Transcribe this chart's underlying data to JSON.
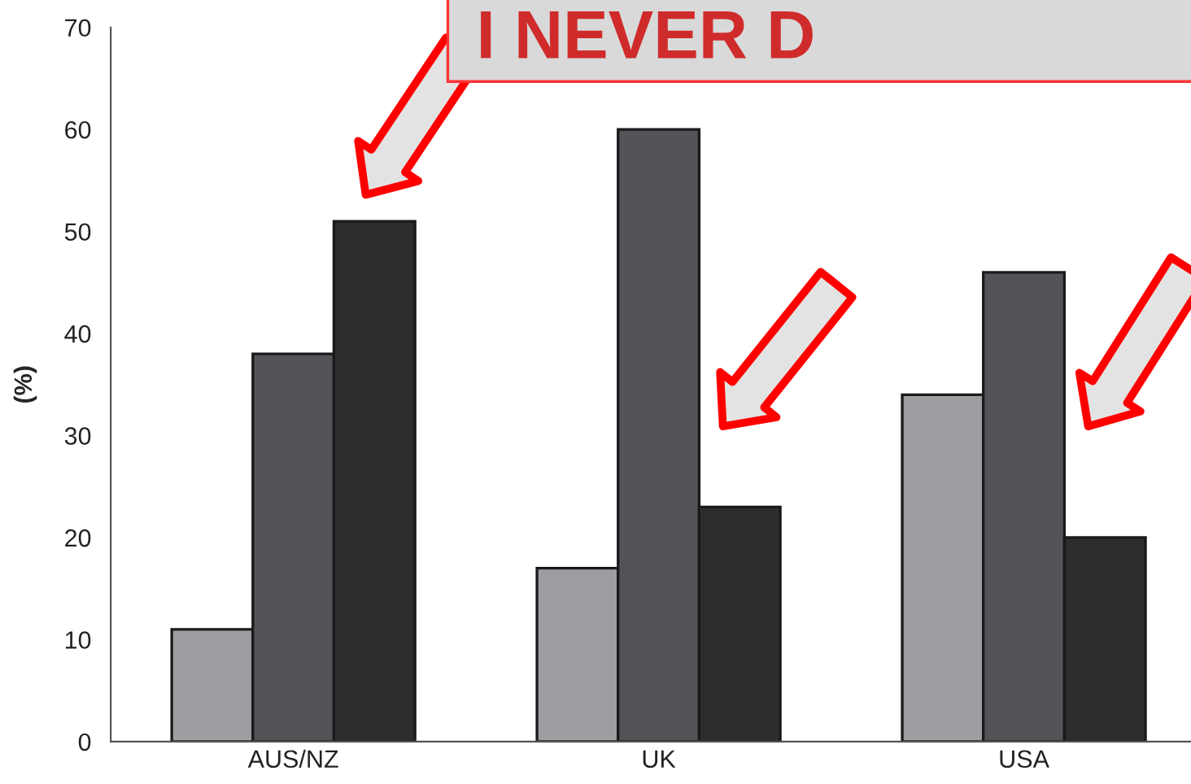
{
  "chart_data": {
    "type": "bar",
    "ylabel": "(%)",
    "categories": [
      "AUS/NZ",
      "UK",
      "USA"
    ],
    "series": [
      {
        "color": "#9d9ea2",
        "values": [
          11,
          17,
          34
        ]
      },
      {
        "color": "#545358",
        "values": [
          38,
          60,
          46
        ]
      },
      {
        "color": "#2f2c2d",
        "values": [
          51,
          23,
          20
        ]
      }
    ],
    "ylim": [
      0,
      70
    ],
    "yticks": [
      0,
      10,
      20,
      30,
      40,
      50,
      60,
      70
    ],
    "grid": false,
    "legend": false,
    "annotations": [
      "I NEVER D"
    ]
  }
}
